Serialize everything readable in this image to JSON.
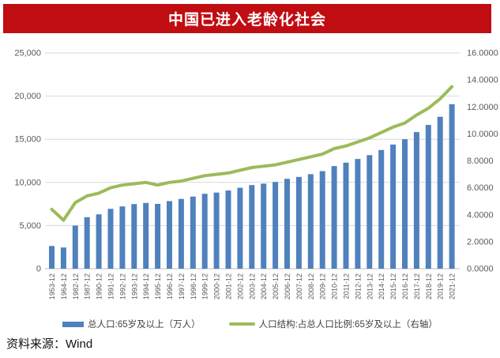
{
  "title": "中国已进入老龄化社会",
  "source": "资料来源：Wind",
  "colors": {
    "title_bg": "#c00d12",
    "title_text": "#ffffff",
    "bar": "#4f81bd",
    "line": "#9bbb59",
    "grid": "#d9d9d9",
    "axis_line": "#bfbfbf",
    "axis_text": "#595959"
  },
  "legend": [
    {
      "label": "总人口:65岁及以上（万人）",
      "type": "bar"
    },
    {
      "label": "人口结构:占总人口比例:65岁及以上（右轴）",
      "type": "line"
    }
  ],
  "chart_data": {
    "type": "bar+line",
    "title": "中国已进入老龄化社会",
    "categories": [
      "1953-12",
      "1964-12",
      "1982-12",
      "1987-12",
      "1990-12",
      "1991-12",
      "1992-12",
      "1993-12",
      "1994-12",
      "1995-12",
      "1996-12",
      "1997-12",
      "1998-12",
      "1999-12",
      "2000-12",
      "2001-12",
      "2002-12",
      "2003-12",
      "2004-12",
      "2005-12",
      "2006-12",
      "2007-12",
      "2008-12",
      "2009-12",
      "2010-12",
      "2011-12",
      "2012-12",
      "2013-12",
      "2014-12",
      "2015-12",
      "2016-12",
      "2017-12",
      "2018-12",
      "2019-12",
      "2021-12"
    ],
    "series": [
      {
        "name": "总人口:65岁及以上（万人）",
        "type": "bar",
        "axis": "left",
        "values": [
          2632,
          2458,
          4991,
          5968,
          6299,
          6938,
          7218,
          7489,
          7622,
          7510,
          7833,
          8085,
          8359,
          8679,
          8821,
          9062,
          9377,
          9692,
          9857,
          10055,
          10419,
          10636,
          10956,
          11307,
          11894,
          12288,
          12714,
          13161,
          13755,
          14386,
          15003,
          15831,
          16658,
          17603,
          19064
        ]
      },
      {
        "name": "人口结构:占总人口比例:65岁及以上（右轴）",
        "type": "line",
        "axis": "right",
        "values": [
          4.4,
          3.6,
          4.9,
          5.4,
          5.6,
          6.0,
          6.2,
          6.3,
          6.4,
          6.2,
          6.4,
          6.5,
          6.7,
          6.9,
          7.0,
          7.1,
          7.3,
          7.5,
          7.6,
          7.7,
          7.9,
          8.1,
          8.3,
          8.5,
          8.9,
          9.1,
          9.4,
          9.7,
          10.1,
          10.5,
          10.8,
          11.4,
          11.9,
          12.6,
          13.5
        ]
      }
    ],
    "left_axis": {
      "min": 0,
      "max": 25000,
      "tick_step": 5000,
      "ticks": [
        "0",
        "5,000",
        "10,000",
        "15,000",
        "20,000",
        "25,000"
      ]
    },
    "right_axis": {
      "min": 0,
      "max": 16,
      "tick_step": 2,
      "ticks": [
        "0.0000",
        "2.0000",
        "4.0000",
        "6.0000",
        "8.0000",
        "10.0000",
        "12.0000",
        "14.0000",
        "16.0000"
      ]
    },
    "grid": true,
    "legend_position": "bottom"
  }
}
